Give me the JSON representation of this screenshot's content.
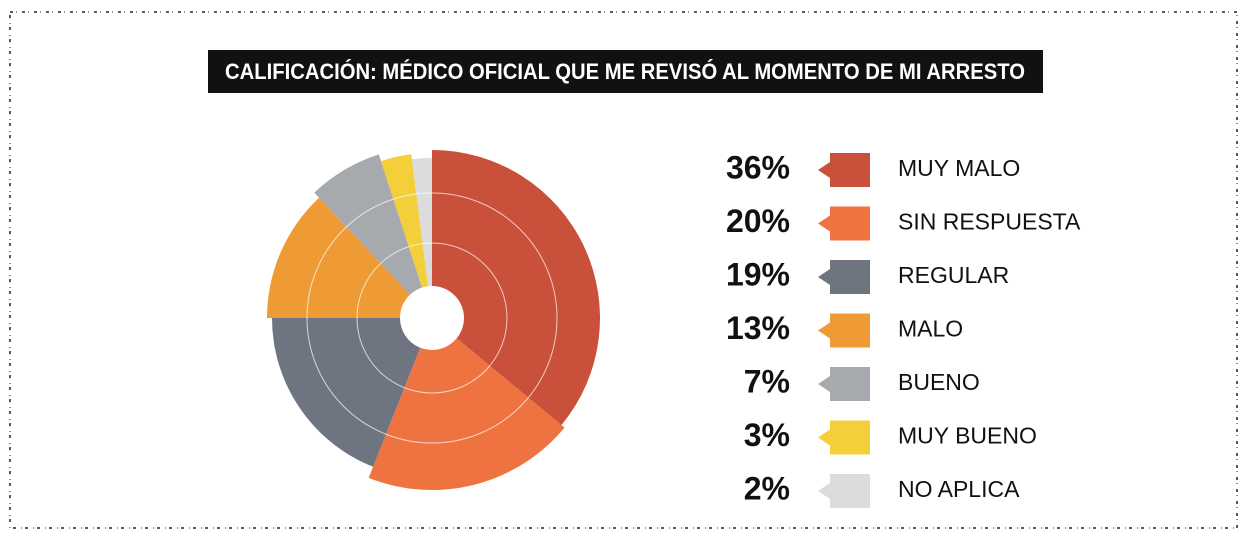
{
  "chart_data": {
    "type": "pie",
    "title": "CALIFICACIÓN: MÉDICO OFICIAL QUE ME REVISÓ AL MOMENTO DE MI ARRESTO",
    "series": [
      {
        "name": "MUY MALO",
        "color": "#c9503b",
        "values": [
          36
        ],
        "value_labels": [
          "36%"
        ]
      },
      {
        "name": "SIN RESPUESTA",
        "color": "#ef7340",
        "values": [
          20
        ],
        "value_labels": [
          "20%"
        ]
      },
      {
        "name": "REGULAR",
        "color": "#6f7580",
        "values": [
          19
        ],
        "value_labels": [
          "19%"
        ]
      },
      {
        "name": "MALO",
        "color": "#ee9a35",
        "values": [
          13
        ],
        "value_labels": [
          "13%"
        ]
      },
      {
        "name": "BUENO",
        "color": "#a6aaae",
        "values": [
          7
        ],
        "value_labels": [
          "7%"
        ]
      },
      {
        "name": "MUY BUENO",
        "color": "#f3cf3a",
        "values": [
          3
        ],
        "value_labels": [
          "3%"
        ]
      },
      {
        "name": "NO APLICA",
        "color": "#dcdcdc",
        "values": [
          2
        ],
        "value_labels": [
          "2%"
        ]
      }
    ]
  }
}
